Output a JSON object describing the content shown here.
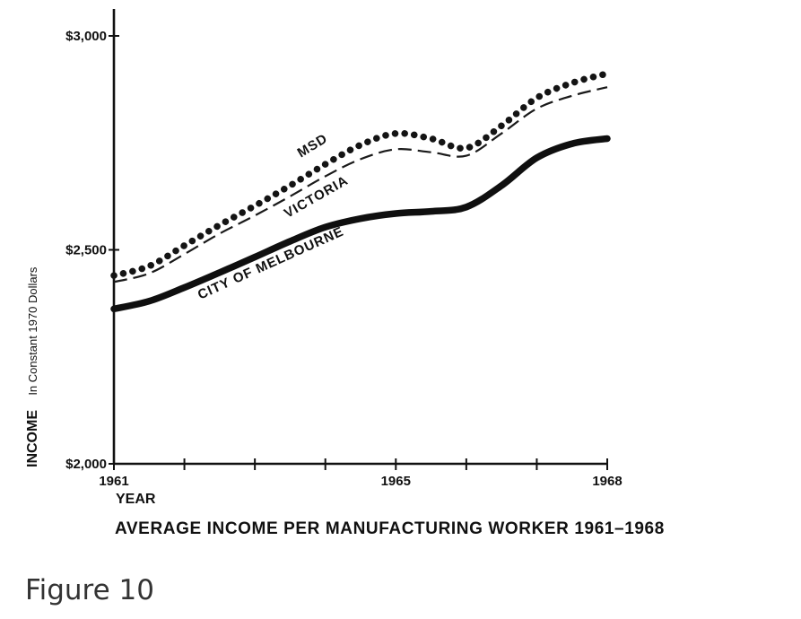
{
  "chart_data": {
    "type": "line",
    "caption": "AVERAGE INCOME PER MANUFACTURING WORKER 1961–1968",
    "figure_label": "Figure 10",
    "xlabel": "YEAR",
    "ylabel": "INCOME",
    "ylabel_sub": "In Constant 1970 Dollars",
    "x_tick_labels": [
      {
        "x": 1961,
        "label": "1961"
      },
      {
        "x": 1965,
        "label": "1965"
      },
      {
        "x": 1968,
        "label": "1968"
      }
    ],
    "x_minor_ticks": [
      1961,
      1962,
      1963,
      1964,
      1965,
      1966,
      1967,
      1968
    ],
    "y_tick_labels": [
      {
        "y": 2000,
        "label": "$2,000"
      },
      {
        "y": 2500,
        "label": "$2,500"
      },
      {
        "y": 3000,
        "label": "$3,000"
      }
    ],
    "xlim": [
      1961,
      1968
    ],
    "ylim": [
      2000,
      3000
    ],
    "grid": false,
    "series": [
      {
        "name": "MSD",
        "style": "dotted",
        "label_anchor": {
          "x": 1963.85,
          "y": 2735
        },
        "points": [
          {
            "x": 1961,
            "y": 2440
          },
          {
            "x": 1961.5,
            "y": 2462
          },
          {
            "x": 1962,
            "y": 2510
          },
          {
            "x": 1962.5,
            "y": 2558
          },
          {
            "x": 1963,
            "y": 2603
          },
          {
            "x": 1963.5,
            "y": 2650
          },
          {
            "x": 1964,
            "y": 2700
          },
          {
            "x": 1964.5,
            "y": 2745
          },
          {
            "x": 1965,
            "y": 2772
          },
          {
            "x": 1965.5,
            "y": 2760
          },
          {
            "x": 1966,
            "y": 2738
          },
          {
            "x": 1966.5,
            "y": 2790
          },
          {
            "x": 1967,
            "y": 2855
          },
          {
            "x": 1967.5,
            "y": 2890
          },
          {
            "x": 1968,
            "y": 2912
          }
        ]
      },
      {
        "name": "VICTORIA",
        "style": "dashed",
        "label_anchor": {
          "x": 1963.9,
          "y": 2615
        },
        "points": [
          {
            "x": 1961,
            "y": 2425
          },
          {
            "x": 1961.5,
            "y": 2445
          },
          {
            "x": 1962,
            "y": 2490
          },
          {
            "x": 1962.5,
            "y": 2538
          },
          {
            "x": 1963,
            "y": 2580
          },
          {
            "x": 1963.5,
            "y": 2625
          },
          {
            "x": 1964,
            "y": 2672
          },
          {
            "x": 1964.5,
            "y": 2712
          },
          {
            "x": 1965,
            "y": 2735
          },
          {
            "x": 1965.5,
            "y": 2728
          },
          {
            "x": 1966,
            "y": 2720
          },
          {
            "x": 1966.5,
            "y": 2772
          },
          {
            "x": 1967,
            "y": 2830
          },
          {
            "x": 1967.5,
            "y": 2860
          },
          {
            "x": 1968,
            "y": 2880
          }
        ]
      },
      {
        "name": "CITY OF MELBOURNE",
        "style": "solid",
        "label_anchor": {
          "x": 1963.25,
          "y": 2460
        },
        "points": [
          {
            "x": 1961,
            "y": 2362
          },
          {
            "x": 1961.5,
            "y": 2380
          },
          {
            "x": 1962,
            "y": 2412
          },
          {
            "x": 1962.5,
            "y": 2447
          },
          {
            "x": 1963,
            "y": 2483
          },
          {
            "x": 1963.5,
            "y": 2520
          },
          {
            "x": 1964,
            "y": 2553
          },
          {
            "x": 1964.5,
            "y": 2573
          },
          {
            "x": 1965,
            "y": 2585
          },
          {
            "x": 1965.5,
            "y": 2590
          },
          {
            "x": 1966,
            "y": 2600
          },
          {
            "x": 1966.5,
            "y": 2650
          },
          {
            "x": 1967,
            "y": 2715
          },
          {
            "x": 1967.5,
            "y": 2748
          },
          {
            "x": 1968,
            "y": 2760
          }
        ]
      }
    ]
  }
}
